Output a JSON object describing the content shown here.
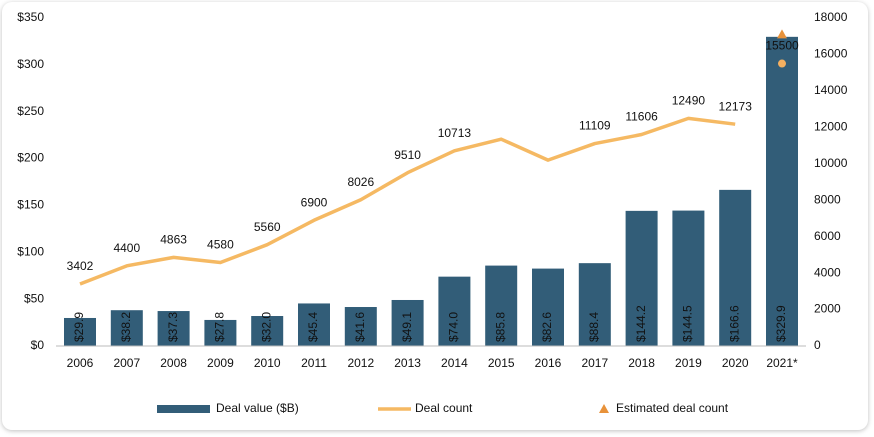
{
  "chart_data": {
    "type": "bar_line",
    "categories": [
      "2006",
      "2007",
      "2008",
      "2009",
      "2010",
      "2011",
      "2012",
      "2013",
      "2014",
      "2015",
      "2016",
      "2017",
      "2018",
      "2019",
      "2020",
      "2021*"
    ],
    "ylim": [
      0,
      350
    ],
    "yticks": [
      {
        "value": 0,
        "label": "$0"
      },
      {
        "value": 50,
        "label": "$50"
      },
      {
        "value": 100,
        "label": "$100"
      },
      {
        "value": 150,
        "label": "$150"
      },
      {
        "value": 200,
        "label": "$200"
      },
      {
        "value": 250,
        "label": "$250"
      },
      {
        "value": 300,
        "label": "$300"
      },
      {
        "value": 350,
        "label": "$350"
      }
    ],
    "y2lim": [
      0,
      18000
    ],
    "y2ticks": [
      0,
      2000,
      4000,
      6000,
      8000,
      10000,
      12000,
      14000,
      16000,
      18000
    ],
    "series": [
      {
        "name": "Deal value ($B)",
        "type": "bar",
        "color": "#325d78",
        "values": [
          29.9,
          38.2,
          37.3,
          27.8,
          32.0,
          45.4,
          41.6,
          49.1,
          74.0,
          85.8,
          82.6,
          88.4,
          144.2,
          144.5,
          166.6,
          329.9
        ],
        "value_labels": [
          "$29.9",
          "$38.2",
          "$37.3",
          "$27.8",
          "$32.0",
          "$45.4",
          "$41.6",
          "$49.1",
          "$74.0",
          "$85.8",
          "$82.6",
          "$88.4",
          "$144.2",
          "$144.5",
          "$166.6",
          "$329.9"
        ]
      },
      {
        "name": "Deal count",
        "type": "line",
        "axis": "y2",
        "color": "#f5b963",
        "point_color": "#f5b060",
        "unconnected_from": 15,
        "values": [
          3402,
          4400,
          4863,
          4580,
          5560,
          6900,
          8026,
          9510,
          10713,
          11350,
          10200,
          11109,
          11606,
          12490,
          12173,
          15500
        ],
        "value_labels": [
          "3402",
          "4400",
          "4863",
          "4580",
          "5560",
          "6900",
          "8026",
          "9510",
          "10713",
          null,
          null,
          "11109",
          "11606",
          "12490",
          "12173",
          "15500"
        ]
      },
      {
        "name": "Estimated deal count",
        "type": "marker",
        "axis": "y2",
        "color": "#e8923a",
        "values": [
          null,
          null,
          null,
          null,
          null,
          null,
          null,
          null,
          null,
          null,
          null,
          null,
          null,
          null,
          null,
          17100
        ]
      }
    ]
  }
}
